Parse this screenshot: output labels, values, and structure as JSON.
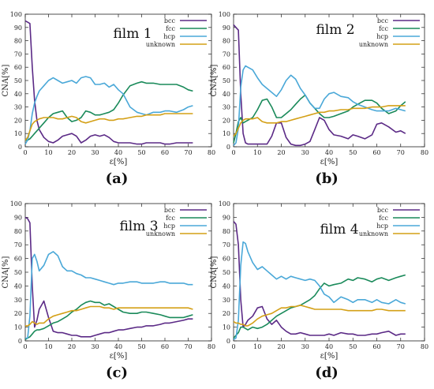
{
  "colors": {
    "bcc": "#5b2a86",
    "fcc": "#1a8a5a",
    "hcp": "#4aa8d8",
    "unknown": "#d4a017"
  },
  "chart_data": [
    {
      "type": "line",
      "panel_label": "(a)",
      "title": "film 1",
      "xlabel": "ε[%]",
      "ylabel": "CNA[%]",
      "xlim": [
        0,
        80
      ],
      "ylim": [
        0,
        100
      ],
      "xticks": [
        0,
        10,
        20,
        30,
        40,
        50,
        60,
        70,
        80
      ],
      "yticks": [
        0,
        10,
        20,
        30,
        40,
        50,
        60,
        70,
        80,
        90,
        100
      ],
      "grid": false,
      "legend": "top-right",
      "x": [
        0,
        1,
        2,
        3,
        4,
        5,
        6,
        8,
        10,
        12,
        14,
        16,
        18,
        20,
        22,
        24,
        26,
        28,
        30,
        32,
        34,
        36,
        38,
        40,
        42,
        45,
        48,
        50,
        52,
        55,
        58,
        60,
        62,
        65,
        68,
        70,
        72
      ],
      "series": [
        {
          "name": "bcc",
          "values": [
            95,
            94,
            93,
            60,
            35,
            20,
            13,
            7,
            4,
            3,
            5,
            8,
            9,
            10,
            8,
            3,
            5,
            8,
            9,
            8,
            9,
            7,
            4,
            3,
            3,
            3,
            2,
            2,
            3,
            3,
            3,
            2,
            2,
            3,
            3,
            3,
            3
          ]
        },
        {
          "name": "fcc",
          "values": [
            5,
            5,
            6,
            8,
            10,
            12,
            14,
            18,
            22,
            25,
            26,
            27,
            22,
            19,
            20,
            22,
            27,
            26,
            24,
            24,
            25,
            26,
            28,
            33,
            39,
            46,
            48,
            49,
            48,
            48,
            47,
            47,
            47,
            47,
            45,
            43,
            42
          ]
        },
        {
          "name": "hcp",
          "values": [
            2,
            5,
            12,
            25,
            33,
            38,
            42,
            46,
            50,
            52,
            50,
            48,
            49,
            50,
            48,
            52,
            53,
            52,
            47,
            47,
            48,
            45,
            47,
            43,
            40,
            30,
            26,
            25,
            24,
            26,
            26,
            27,
            27,
            26,
            28,
            30,
            31
          ]
        },
        {
          "name": "unknown",
          "values": [
            5,
            7,
            12,
            17,
            19,
            20,
            21,
            22,
            22,
            22,
            21,
            21,
            22,
            23,
            22,
            19,
            18,
            19,
            20,
            21,
            21,
            20,
            20,
            21,
            21,
            22,
            23,
            23,
            24,
            24,
            24,
            25,
            25,
            25,
            25,
            25,
            25
          ]
        }
      ]
    },
    {
      "type": "line",
      "panel_label": "(b)",
      "title": "film 2",
      "xlabel": "ε[%]",
      "ylabel": "CNA[%]",
      "xlim": [
        0,
        80
      ],
      "ylim": [
        0,
        100
      ],
      "xticks": [
        0,
        10,
        20,
        30,
        40,
        50,
        60,
        70,
        80
      ],
      "yticks": [
        0,
        10,
        20,
        30,
        40,
        50,
        60,
        70,
        80,
        90,
        100
      ],
      "grid": false,
      "legend": "top-right",
      "x": [
        0,
        1,
        2,
        3,
        4,
        5,
        6,
        8,
        10,
        12,
        14,
        16,
        18,
        20,
        22,
        24,
        26,
        28,
        30,
        32,
        34,
        36,
        38,
        40,
        42,
        45,
        48,
        50,
        52,
        55,
        58,
        60,
        62,
        65,
        68,
        70,
        72
      ],
      "series": [
        {
          "name": "bcc",
          "values": [
            92,
            90,
            88,
            40,
            10,
            3,
            2,
            2,
            2,
            2,
            2,
            8,
            18,
            18,
            7,
            2,
            1,
            1,
            2,
            4,
            13,
            22,
            20,
            13,
            9,
            8,
            6,
            9,
            8,
            6,
            9,
            17,
            18,
            15,
            11,
            12,
            10
          ]
        },
        {
          "name": "fcc",
          "values": [
            3,
            10,
            19,
            22,
            18,
            19,
            20,
            22,
            28,
            35,
            36,
            30,
            22,
            22,
            25,
            28,
            32,
            36,
            39,
            33,
            29,
            25,
            22,
            22,
            23,
            25,
            27,
            30,
            32,
            35,
            35,
            33,
            29,
            25,
            27,
            31,
            34
          ]
        },
        {
          "name": "hcp",
          "values": [
            1,
            3,
            14,
            45,
            58,
            61,
            60,
            58,
            52,
            47,
            44,
            41,
            38,
            43,
            50,
            54,
            51,
            44,
            39,
            33,
            29,
            29,
            36,
            40,
            41,
            38,
            37,
            34,
            32,
            30,
            28,
            27,
            27,
            27,
            29,
            28,
            27
          ]
        },
        {
          "name": "unknown",
          "values": [
            8,
            10,
            14,
            18,
            20,
            21,
            21,
            21,
            22,
            19,
            18,
            18,
            18,
            19,
            19,
            20,
            21,
            22,
            23,
            24,
            25,
            26,
            26,
            27,
            27,
            28,
            28,
            29,
            29,
            29,
            30,
            30,
            30,
            31,
            31,
            31,
            31
          ]
        }
      ]
    },
    {
      "type": "line",
      "panel_label": "(c)",
      "title": "film 3",
      "xlabel": "ε[%]",
      "ylabel": "CNA[%]",
      "xlim": [
        0,
        80
      ],
      "ylim": [
        0,
        100
      ],
      "xticks": [
        0,
        10,
        20,
        30,
        40,
        50,
        60,
        70,
        80
      ],
      "yticks": [
        0,
        10,
        20,
        30,
        40,
        50,
        60,
        70,
        80,
        90,
        100
      ],
      "grid": false,
      "legend": "top-right",
      "x": [
        0,
        1,
        2,
        3,
        4,
        5,
        6,
        8,
        10,
        12,
        14,
        16,
        18,
        20,
        22,
        24,
        26,
        28,
        30,
        32,
        34,
        36,
        38,
        40,
        42,
        45,
        48,
        50,
        52,
        55,
        58,
        60,
        62,
        65,
        68,
        70,
        72
      ],
      "series": [
        {
          "name": "bcc",
          "values": [
            90,
            89,
            86,
            40,
            10,
            15,
            23,
            29,
            17,
            7,
            6,
            6,
            5,
            4,
            4,
            3,
            3,
            3,
            4,
            5,
            6,
            6,
            7,
            8,
            8,
            9,
            10,
            10,
            11,
            11,
            12,
            13,
            13,
            14,
            15,
            16,
            16
          ]
        },
        {
          "name": "fcc",
          "values": [
            1,
            2,
            3,
            5,
            7,
            8,
            8,
            9,
            11,
            13,
            14,
            16,
            18,
            21,
            23,
            26,
            28,
            29,
            28,
            28,
            26,
            27,
            25,
            23,
            21,
            20,
            20,
            21,
            21,
            20,
            19,
            18,
            17,
            17,
            17,
            18,
            19
          ]
        },
        {
          "name": "hcp",
          "values": [
            2,
            2,
            18,
            60,
            63,
            58,
            51,
            55,
            63,
            65,
            62,
            54,
            51,
            51,
            49,
            48,
            46,
            46,
            45,
            44,
            43,
            42,
            41,
            42,
            42,
            43,
            43,
            42,
            42,
            42,
            43,
            43,
            42,
            42,
            42,
            41,
            41
          ]
        },
        {
          "name": "unknown",
          "values": [
            11,
            11,
            12,
            14,
            13,
            12,
            13,
            13,
            16,
            18,
            19,
            20,
            21,
            22,
            22,
            23,
            24,
            25,
            25,
            25,
            24,
            24,
            23,
            24,
            24,
            24,
            24,
            24,
            24,
            24,
            24,
            24,
            24,
            24,
            24,
            24,
            23
          ]
        }
      ]
    },
    {
      "type": "line",
      "panel_label": "(d)",
      "title": "film 4",
      "xlabel": "ε[%]",
      "ylabel": "CNA[%]",
      "xlim": [
        0,
        80
      ],
      "ylim": [
        0,
        100
      ],
      "xticks": [
        0,
        10,
        20,
        30,
        40,
        50,
        60,
        70,
        80
      ],
      "yticks": [
        0,
        10,
        20,
        30,
        40,
        50,
        60,
        70,
        80,
        90,
        100
      ],
      "grid": false,
      "legend": "top-right",
      "x": [
        0,
        1,
        2,
        3,
        4,
        5,
        6,
        8,
        10,
        12,
        14,
        16,
        18,
        20,
        22,
        24,
        26,
        28,
        30,
        32,
        34,
        36,
        38,
        40,
        42,
        45,
        48,
        50,
        52,
        55,
        58,
        60,
        62,
        65,
        68,
        70,
        72
      ],
      "series": [
        {
          "name": "bcc",
          "values": [
            87,
            85,
            70,
            30,
            10,
            12,
            15,
            18,
            24,
            25,
            16,
            12,
            15,
            10,
            7,
            5,
            5,
            6,
            5,
            4,
            4,
            4,
            4,
            5,
            4,
            6,
            5,
            5,
            4,
            4,
            5,
            5,
            6,
            7,
            4,
            5,
            5
          ]
        },
        {
          "name": "fcc",
          "values": [
            2,
            4,
            6,
            10,
            10,
            9,
            8,
            10,
            9,
            10,
            12,
            15,
            18,
            20,
            22,
            24,
            25,
            26,
            28,
            30,
            33,
            38,
            42,
            40,
            41,
            42,
            45,
            44,
            46,
            45,
            43,
            45,
            46,
            44,
            46,
            47,
            48
          ]
        },
        {
          "name": "hcp",
          "values": [
            1,
            2,
            15,
            55,
            72,
            71,
            65,
            57,
            52,
            54,
            51,
            48,
            45,
            47,
            45,
            47,
            46,
            45,
            44,
            45,
            44,
            40,
            34,
            32,
            28,
            32,
            30,
            28,
            30,
            30,
            28,
            30,
            28,
            27,
            30,
            28,
            27
          ]
        },
        {
          "name": "unknown",
          "values": [
            14,
            13,
            13,
            12,
            12,
            11,
            11,
            13,
            16,
            18,
            19,
            20,
            22,
            24,
            24,
            25,
            25,
            26,
            25,
            24,
            23,
            23,
            23,
            23,
            23,
            23,
            22,
            22,
            22,
            22,
            22,
            23,
            23,
            22,
            22,
            22,
            22
          ]
        }
      ]
    }
  ]
}
